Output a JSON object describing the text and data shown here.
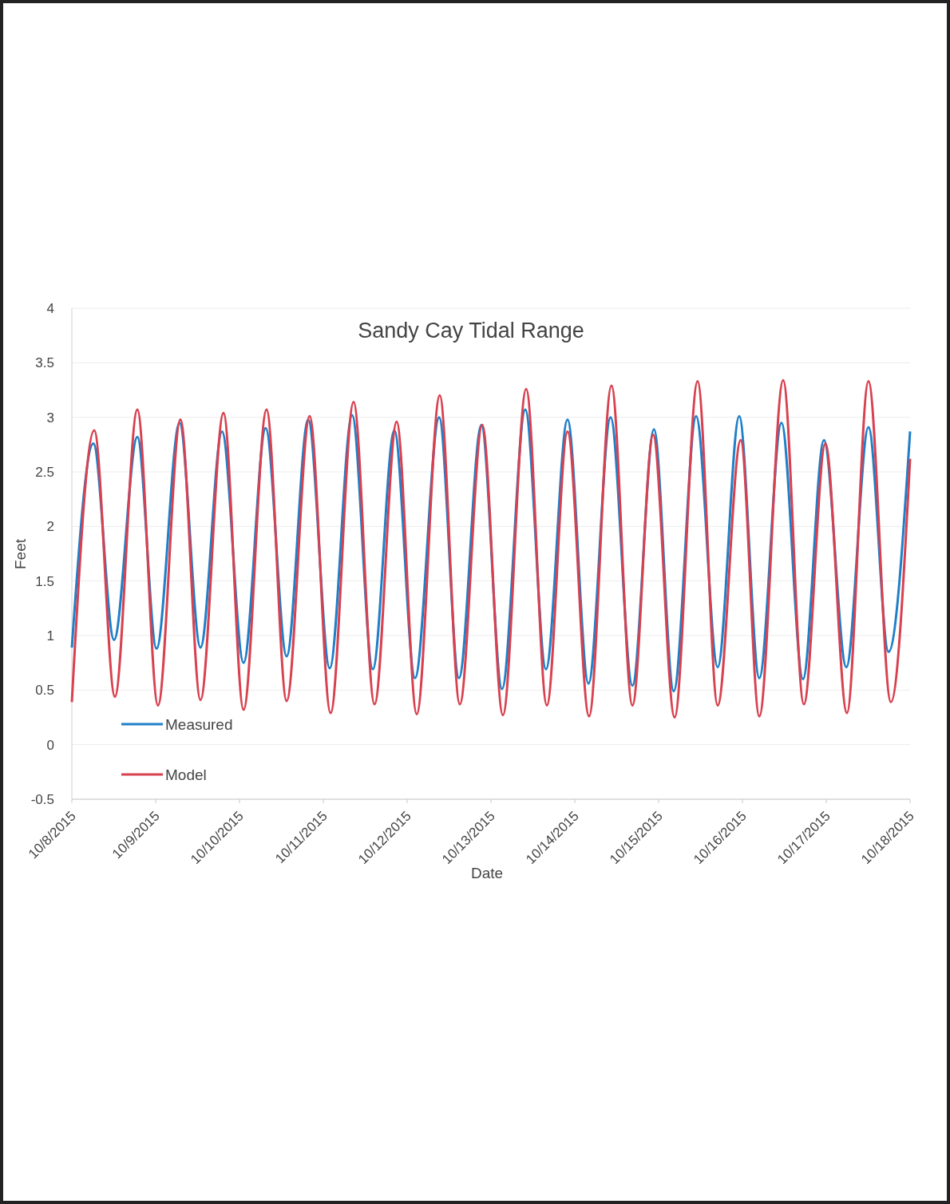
{
  "chart_data": {
    "type": "line",
    "title": "Sandy Cay Tidal Range",
    "xlabel": "Date",
    "ylabel": "Feet",
    "xlim": [
      "2015-10-08",
      "2015-10-18"
    ],
    "xticks": [
      {
        "value": "2015-10-08",
        "label": "10/8/2015"
      },
      {
        "value": "2015-10-09",
        "label": "10/9/2015"
      },
      {
        "value": "2015-10-10",
        "label": "10/10/2015"
      },
      {
        "value": "2015-10-11",
        "label": "10/11/2015"
      },
      {
        "value": "2015-10-12",
        "label": "10/12/2015"
      },
      {
        "value": "2015-10-13",
        "label": "10/13/2015"
      },
      {
        "value": "2015-10-14",
        "label": "10/14/2015"
      },
      {
        "value": "2015-10-15",
        "label": "10/15/2015"
      },
      {
        "value": "2015-10-16",
        "label": "10/16/2015"
      },
      {
        "value": "2015-10-17",
        "label": "10/17/2015"
      },
      {
        "value": "2015-10-18",
        "label": "10/18/2015"
      }
    ],
    "ylim": [
      -0.5,
      4
    ],
    "yticks": [
      -0.5,
      0,
      0.5,
      1,
      1.5,
      2,
      2.5,
      3,
      3.5,
      4
    ],
    "grid": "y",
    "legend": "bottom left",
    "marker": "none",
    "line_style": "solid",
    "series": [
      {
        "name": "Measured",
        "color": "#1f7fc8",
        "x": [
          "2015-10-08T00:00",
          "2015-10-08T06:10",
          "2015-10-08T12:05",
          "2015-10-08T18:45",
          "2015-10-09T00:15",
          "2015-10-09T06:50",
          "2015-10-09T12:50",
          "2015-10-09T19:00",
          "2015-10-10T01:10",
          "2015-10-10T07:30",
          "2015-10-10T13:30",
          "2015-10-10T19:40",
          "2015-10-11T01:50",
          "2015-10-11T08:15",
          "2015-10-11T14:10",
          "2015-10-11T20:20",
          "2015-10-12T02:15",
          "2015-10-12T09:10",
          "2015-10-12T14:50",
          "2015-10-12T21:15",
          "2015-10-13T03:10",
          "2015-10-13T09:50",
          "2015-10-13T15:45",
          "2015-10-13T21:55",
          "2015-10-14T03:55",
          "2015-10-14T10:15",
          "2015-10-14T16:30",
          "2015-10-14T22:40",
          "2015-10-15T04:20",
          "2015-10-15T10:45",
          "2015-10-15T16:55",
          "2015-10-15T23:05",
          "2015-10-16T04:50",
          "2015-10-16T11:10",
          "2015-10-16T17:20",
          "2015-10-16T23:20",
          "2015-10-17T05:45",
          "2015-10-17T12:05",
          "2015-10-17T17:50",
          "2015-10-18T00:00"
        ],
        "values": [
          0.89,
          2.76,
          0.96,
          2.82,
          0.88,
          2.95,
          0.89,
          2.87,
          0.75,
          2.9,
          0.81,
          2.98,
          0.7,
          3.02,
          0.69,
          2.88,
          0.61,
          3.0,
          0.61,
          2.93,
          0.51,
          3.07,
          0.69,
          2.98,
          0.56,
          3.0,
          0.54,
          2.89,
          0.49,
          3.01,
          0.71,
          3.01,
          0.61,
          2.95,
          0.6,
          2.79,
          0.71,
          2.91,
          0.85,
          2.87
        ]
      },
      {
        "name": "Model",
        "color": "#d8414f",
        "x": [
          "2015-10-08T00:00",
          "2015-10-08T06:25",
          "2015-10-08T12:20",
          "2015-10-08T18:45",
          "2015-10-09T00:40",
          "2015-10-09T07:05",
          "2015-10-09T12:50",
          "2015-10-09T19:25",
          "2015-10-10T01:10",
          "2015-10-10T07:45",
          "2015-10-10T13:30",
          "2015-10-10T20:05",
          "2015-10-11T02:05",
          "2015-10-11T08:40",
          "2015-10-11T14:40",
          "2015-10-11T21:00",
          "2015-10-12T02:45",
          "2015-10-12T09:20",
          "2015-10-12T15:05",
          "2015-10-12T21:30",
          "2015-10-13T03:25",
          "2015-10-13T10:05",
          "2015-10-13T16:00",
          "2015-10-13T21:55",
          "2015-10-14T04:05",
          "2015-10-14T10:30",
          "2015-10-14T16:30",
          "2015-10-14T22:25",
          "2015-10-15T04:35",
          "2015-10-15T11:10",
          "2015-10-15T16:55",
          "2015-10-15T23:30",
          "2015-10-16T04:50",
          "2015-10-16T11:40",
          "2015-10-16T17:35",
          "2015-10-16T23:45",
          "2015-10-17T05:55",
          "2015-10-17T12:05",
          "2015-10-17T18:30",
          "2015-10-18T00:00"
        ],
        "values": [
          0.39,
          2.88,
          0.44,
          3.07,
          0.36,
          2.98,
          0.41,
          3.04,
          0.32,
          3.07,
          0.4,
          3.01,
          0.29,
          3.14,
          0.37,
          2.96,
          0.28,
          3.2,
          0.37,
          2.93,
          0.27,
          3.26,
          0.36,
          2.87,
          0.26,
          3.29,
          0.36,
          2.84,
          0.25,
          3.33,
          0.36,
          2.79,
          0.26,
          3.34,
          0.37,
          2.76,
          0.29,
          3.33,
          0.39,
          2.62
        ]
      }
    ]
  }
}
